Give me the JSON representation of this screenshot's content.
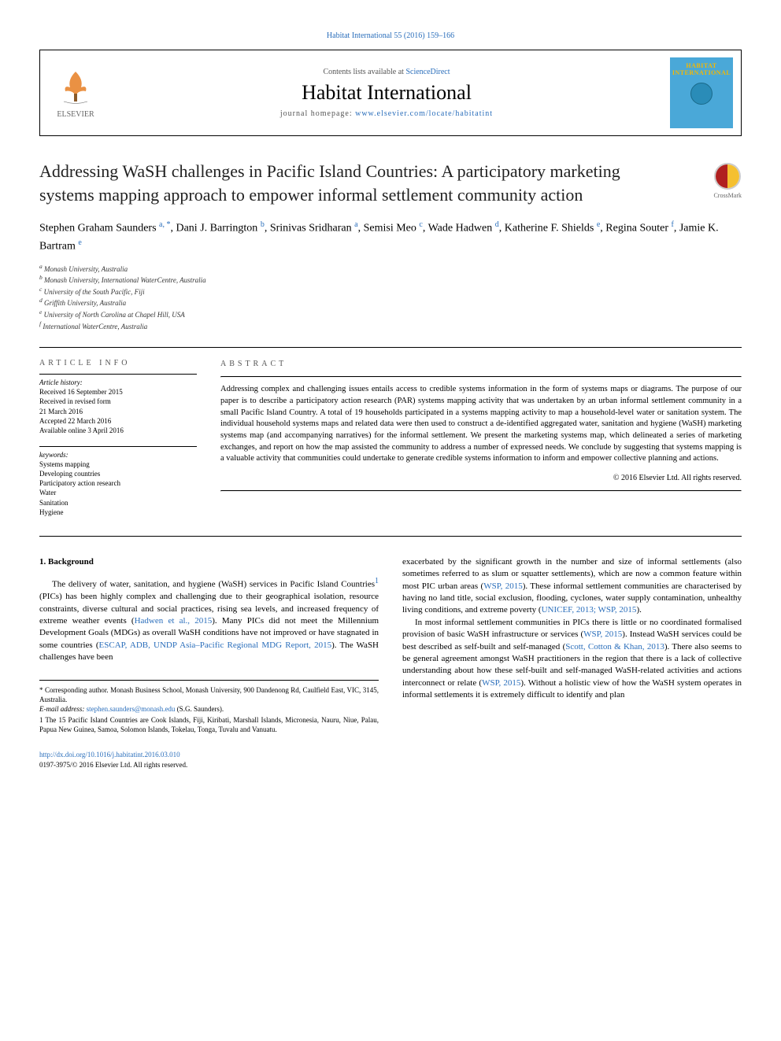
{
  "colors": {
    "link": "#2a6ebb",
    "text": "#000000",
    "cover_bg": "#4aa8d8",
    "cover_title": "#f5b800",
    "crossmark_left": "#b02020",
    "crossmark_right": "#f5c030"
  },
  "typography": {
    "body_font": "Georgia, Times New Roman, serif",
    "article_title_size_pt": 16,
    "journal_title_size_pt": 20,
    "abstract_size_pt": 8,
    "body_size_pt": 8.5
  },
  "top_citation": "Habitat International 55 (2016) 159–166",
  "header": {
    "contents_pre": "Contents lists available at ",
    "contents_link": "ScienceDirect",
    "journal_title": "Habitat International",
    "homepage_pre": "journal homepage: ",
    "homepage_url": "www.elsevier.com/locate/habitatint",
    "publisher": "ELSEVIER",
    "cover_title": "HABITAT INTERNATIONAL"
  },
  "crossmark_label": "CrossMark",
  "article": {
    "title": "Addressing WaSH challenges in Pacific Island Countries: A participatory marketing systems mapping approach to empower informal settlement community action",
    "authors_html": "Stephen Graham Saunders <sup>a, *</sup>, Dani J. Barrington <sup>b</sup>, Srinivas Sridharan <sup>a</sup>, Semisi Meo <sup>c</sup>, Wade Hadwen <sup>d</sup>, Katherine F. Shields <sup>e</sup>, Regina Souter <sup>f</sup>, Jamie K. Bartram <sup>e</sup>",
    "affiliations": [
      "a Monash University, Australia",
      "b Monash University, International WaterCentre, Australia",
      "c University of the South Pacific, Fiji",
      "d Griffith University, Australia",
      "e University of North Carolina at Chapel Hill, USA",
      "f International WaterCentre, Australia"
    ]
  },
  "info": {
    "heading": "ARTICLE INFO",
    "history_label": "Article history:",
    "history": [
      "Received 16 September 2015",
      "Received in revised form",
      "21 March 2016",
      "Accepted 22 March 2016",
      "Available online 3 April 2016"
    ],
    "keywords_label": "keywords:",
    "keywords": [
      "Systems mapping",
      "Developing countries",
      "Participatory action research",
      "Water",
      "Sanitation",
      "Hygiene"
    ]
  },
  "abstract": {
    "heading": "ABSTRACT",
    "text": "Addressing complex and challenging issues entails access to credible systems information in the form of systems maps or diagrams. The purpose of our paper is to describe a participatory action research (PAR) systems mapping activity that was undertaken by an urban informal settlement community in a small Pacific Island Country. A total of 19 households participated in a systems mapping activity to map a household-level water or sanitation system. The individual household systems maps and related data were then used to construct a de-identified aggregated water, sanitation and hygiene (WaSH) marketing systems map (and accompanying narratives) for the informal settlement. We present the marketing systems map, which delineated a series of marketing exchanges, and report on how the map assisted the community to address a number of expressed needs. We conclude by suggesting that systems mapping is a valuable activity that communities could undertake to generate credible systems information to inform and empower collective planning and actions.",
    "copyright": "© 2016 Elsevier Ltd. All rights reserved."
  },
  "body": {
    "heading_1": "1. Background",
    "col1_p1_pre": "The delivery of water, sanitation, and hygiene (WaSH) services in Pacific Island Countries",
    "col1_p1_sup": "1",
    "col1_p1_post": " (PICs) has been highly complex and challenging due to their geographical isolation, resource constraints, diverse cultural and social practices, rising sea levels, and increased frequency of extreme weather events (",
    "col1_p1_link1": "Hadwen et al., 2015",
    "col1_p1_mid": "). Many PICs did not meet the Millennium Development Goals (MDGs) as overall WaSH conditions have not improved or have stagnated in some countries (",
    "col1_p1_link2": "ESCAP, ADB, UNDP Asia–Pacific Regional MDG Report, 2015",
    "col1_p1_end": "). The WaSH challenges have been",
    "col2_p1_pre": "exacerbated by the significant growth in the number and size of informal settlements (also sometimes referred to as slum or squatter settlements), which are now a common feature within most PIC urban areas (",
    "col2_p1_link1": "WSP, 2015",
    "col2_p1_mid": "). These informal settlement communities are characterised by having no land title, social exclusion, flooding, cyclones, water supply contamination, unhealthy living conditions, and extreme poverty (",
    "col2_p1_link2": "UNICEF, 2013; WSP, 2015",
    "col2_p1_end": ").",
    "col2_p2_pre": "In most informal settlement communities in PICs there is little or no coordinated formalised provision of basic WaSH infrastructure or services (",
    "col2_p2_link1": "WSP, 2015",
    "col2_p2_mid1": "). Instead WaSH services could be best described as self-built and self-managed (",
    "col2_p2_link2": "Scott, Cotton & Khan, 2013",
    "col2_p2_mid2": "). There also seems to be general agreement amongst WaSH practitioners in the region that there is a lack of collective understanding about how these self-built and self-managed WaSH-related activities and actions interconnect or relate (",
    "col2_p2_link3": "WSP, 2015",
    "col2_p2_end": "). Without a holistic view of how the WaSH system operates in informal settlements it is extremely difficult to identify and plan"
  },
  "footnotes": {
    "corr": "* Corresponding author. Monash Business School, Monash University, 900 Dandenong Rd, Caulfield East, VIC, 3145, Australia.",
    "email_label": "E-mail address: ",
    "email": "stephen.saunders@monash.edu",
    "email_post": " (S.G. Saunders).",
    "note1": "1 The 15 Pacific Island Countries are Cook Islands, Fiji, Kiribati, Marshall Islands, Micronesia, Nauru, Niue, Palau, Papua New Guinea, Samoa, Solomon Islands, Tokelau, Tonga, Tuvalu and Vanuatu."
  },
  "footer": {
    "doi": "http://dx.doi.org/10.1016/j.habitatint.2016.03.010",
    "issn_line": "0197-3975/© 2016 Elsevier Ltd. All rights reserved."
  }
}
